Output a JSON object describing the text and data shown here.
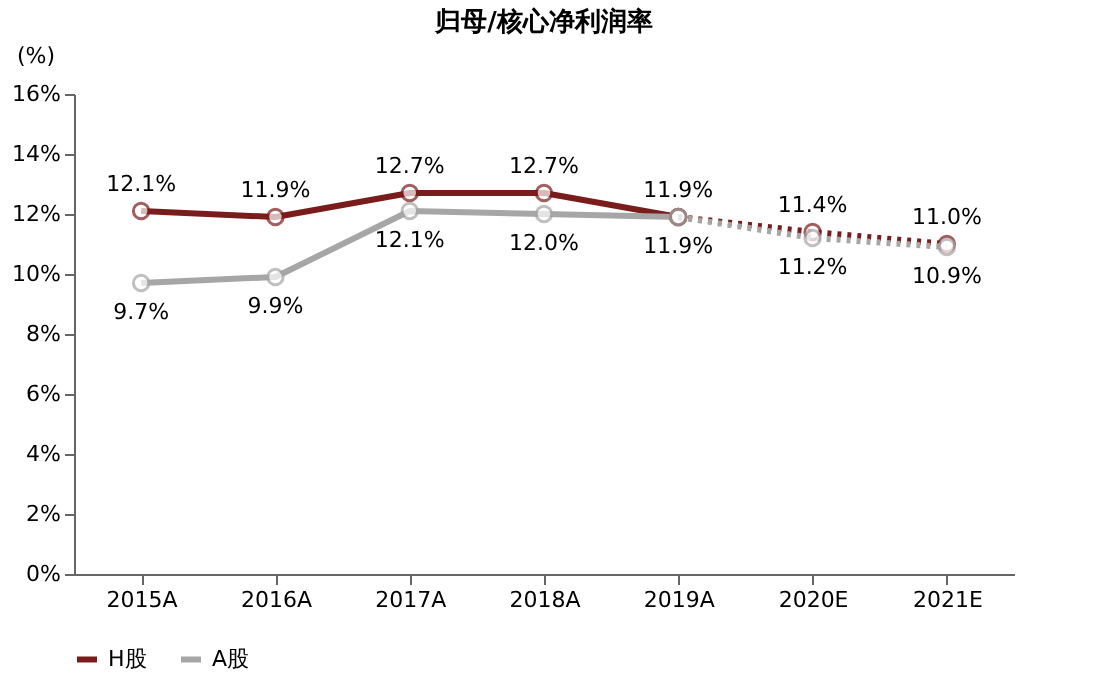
{
  "chart_data": {
    "type": "line",
    "title": "归母/核心净利润率",
    "ylabel": "(%)",
    "categories": [
      "2015A",
      "2016A",
      "2017A",
      "2018A",
      "2019A",
      "2020E",
      "2021E"
    ],
    "series": [
      {
        "name": "H股",
        "color": "#7b1c1c",
        "line_style": "solid",
        "values": [
          12.1,
          11.9,
          12.7,
          12.7,
          11.9,
          null,
          null
        ],
        "value_labels": [
          "12.1%",
          "11.9%",
          "12.7%",
          "12.7%",
          "11.9%",
          null,
          null
        ]
      },
      {
        "name": "A股",
        "color": "#a6a6a6",
        "line_style": "solid",
        "values": [
          9.7,
          9.9,
          12.1,
          12.0,
          11.9,
          null,
          null
        ],
        "value_labels": [
          "9.7%",
          "9.9%",
          "12.1%",
          "12.0%",
          "11.9%",
          null,
          null
        ]
      },
      {
        "color": "#7b1c1c",
        "line_style": "dotted",
        "values": [
          null,
          null,
          null,
          null,
          11.9,
          11.4,
          11.0
        ],
        "value_labels": [
          null,
          null,
          null,
          null,
          null,
          "11.4%",
          "11.0%"
        ]
      },
      {
        "color": "#a6a6a6",
        "line_style": "dotted",
        "values": [
          null,
          null,
          null,
          null,
          11.9,
          11.2,
          10.9
        ],
        "value_labels": [
          null,
          null,
          null,
          null,
          null,
          "11.2%",
          "10.9%"
        ]
      }
    ],
    "ylim": [
      0,
      16
    ],
    "yticks": [
      {
        "value": 0,
        "label": "0%"
      },
      {
        "value": 2,
        "label": "2%"
      },
      {
        "value": 4,
        "label": "4%"
      },
      {
        "value": 6,
        "label": "6%"
      },
      {
        "value": 8,
        "label": "8%"
      },
      {
        "value": 10,
        "label": "10%"
      },
      {
        "value": 12,
        "label": "12%"
      },
      {
        "value": 14,
        "label": "14%"
      },
      {
        "value": 16,
        "label": "16%"
      }
    ],
    "marker": "circle",
    "grid": false,
    "legend": "bottom"
  }
}
